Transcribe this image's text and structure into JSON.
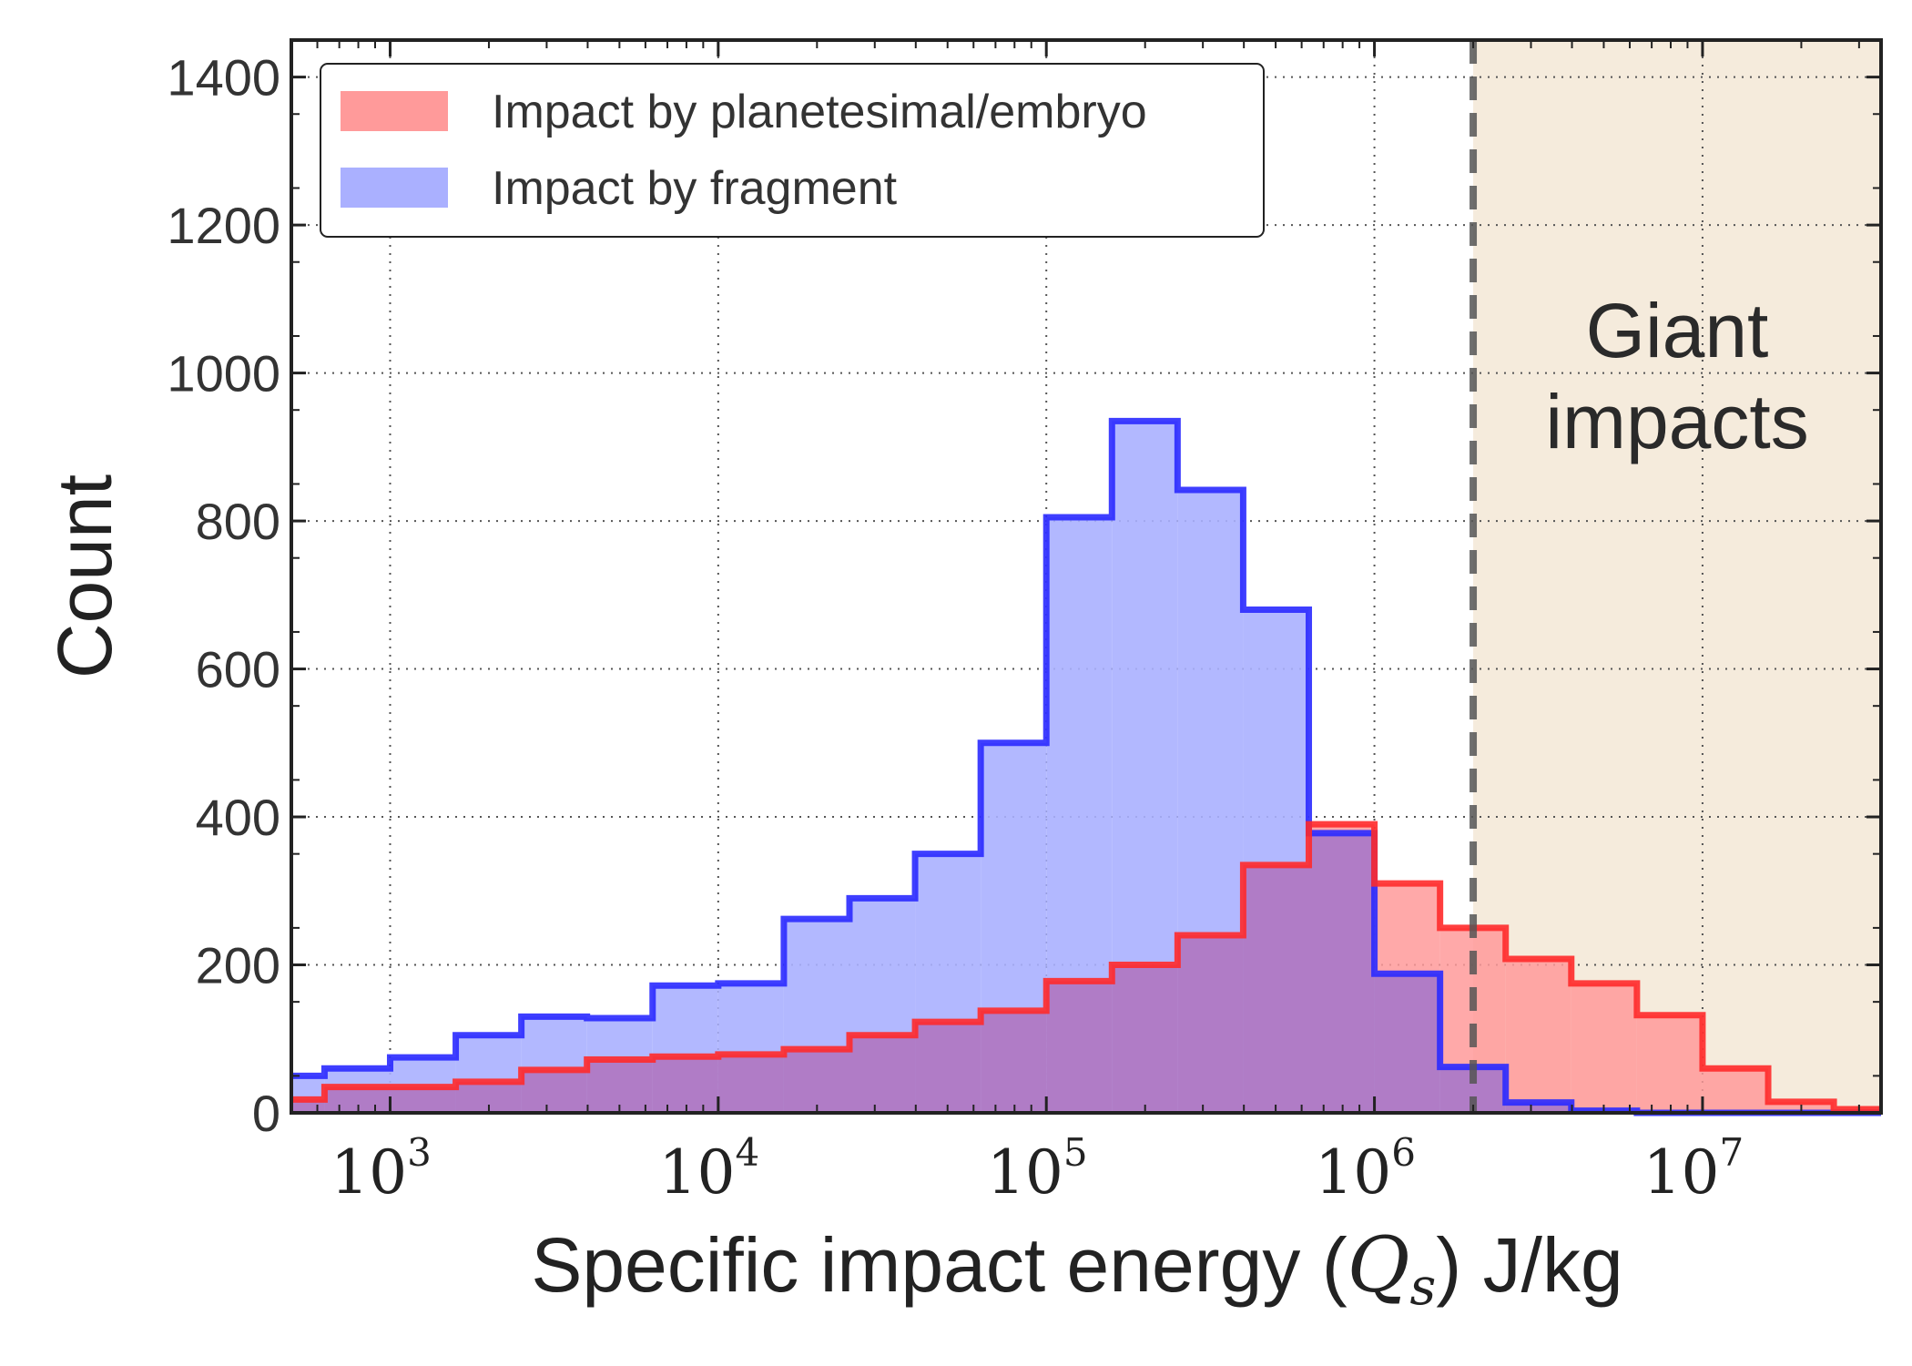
{
  "chart_data": {
    "type": "histogram",
    "title": "",
    "xlabel": {
      "prefix": "Specific impact energy (",
      "symbol": "Q",
      "subscript": "s",
      "suffix": ") J/kg"
    },
    "ylabel": "Count",
    "xscale": "log",
    "xlim": [
      500,
      35000000
    ],
    "ylim": [
      0,
      1450
    ],
    "grid": true,
    "legend_position": "top-left",
    "xticks": [
      {
        "base": "10",
        "exp": "3",
        "value": 1000
      },
      {
        "base": "10",
        "exp": "4",
        "value": 10000
      },
      {
        "base": "10",
        "exp": "5",
        "value": 100000
      },
      {
        "base": "10",
        "exp": "6",
        "value": 1000000
      },
      {
        "base": "10",
        "exp": "7",
        "value": 10000000
      }
    ],
    "yticks": [
      0,
      200,
      400,
      600,
      800,
      1000,
      1200,
      1400
    ],
    "bin_edges": [
      500,
      631,
      1000,
      1585,
      2512,
      3981,
      6310,
      10000,
      15850,
      25120,
      39810,
      63100,
      100000,
      158500,
      251200,
      398100,
      631000,
      1000000,
      1585000,
      2512000,
      3981000,
      6310000,
      10000000,
      15850000,
      25120000,
      35000000
    ],
    "series": [
      {
        "name": "Impact by planetesimal/embryo",
        "fill": "#ff9a9a",
        "stroke": "#ff2a2a",
        "values": [
          18,
          35,
          35,
          42,
          58,
          72,
          76,
          79,
          86,
          105,
          123,
          138,
          178,
          200,
          240,
          335,
          390,
          310,
          250,
          208,
          175,
          132,
          60,
          15,
          5
        ]
      },
      {
        "name": "Impact by fragment",
        "fill": "#aab0ff",
        "stroke": "#2a2aff",
        "values": [
          50,
          60,
          75,
          105,
          130,
          128,
          172,
          175,
          262,
          290,
          350,
          500,
          805,
          935,
          842,
          680,
          378,
          188,
          62,
          14,
          3,
          0,
          0,
          0,
          0
        ]
      }
    ],
    "threshold": {
      "value": 2000000,
      "style": "dashed",
      "color": "#555555"
    },
    "shaded_region": {
      "from": 2000000,
      "to": 35000000,
      "color": "#f5ebdc",
      "label_lines": [
        "Giant",
        "impacts"
      ]
    }
  }
}
